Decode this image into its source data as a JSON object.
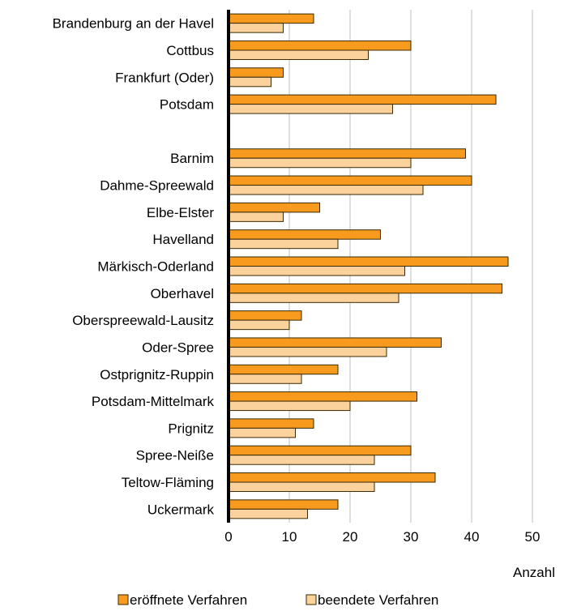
{
  "chart_data": {
    "type": "bar",
    "orientation": "horizontal",
    "categories": [
      "Brandenburg an der Havel",
      "Cottbus",
      "Frankfurt (Oder)",
      "Potsdam",
      "",
      "Barnim",
      "Dahme-Spreewald",
      "Elbe-Elster",
      "Havelland",
      "Märkisch-Oderland",
      "Oberhavel",
      "Oberspreewald-Lausitz",
      "Oder-Spree",
      "Ostprignitz-Ruppin",
      "Potsdam-Mittelmark",
      "Prignitz",
      "Spree-Neiße",
      "Teltow-Fläming",
      "Uckermark"
    ],
    "series": [
      {
        "name": "eröffnete Verfahren",
        "color": "#F79A1E",
        "values": [
          14,
          30,
          9,
          44,
          null,
          39,
          40,
          15,
          25,
          46,
          45,
          12,
          35,
          18,
          31,
          14,
          30,
          34,
          18
        ]
      },
      {
        "name": "beendete Verfahren",
        "color": "#FBD29C",
        "values": [
          9,
          23,
          7,
          27,
          null,
          30,
          32,
          9,
          18,
          29,
          28,
          10,
          26,
          12,
          20,
          11,
          24,
          24,
          13
        ]
      }
    ],
    "xlabel": "Anzahl",
    "xlim": [
      0,
      50
    ],
    "xticks": [
      0,
      10,
      20,
      30,
      40,
      50
    ],
    "grid": "vertical",
    "legend": "bottom"
  }
}
